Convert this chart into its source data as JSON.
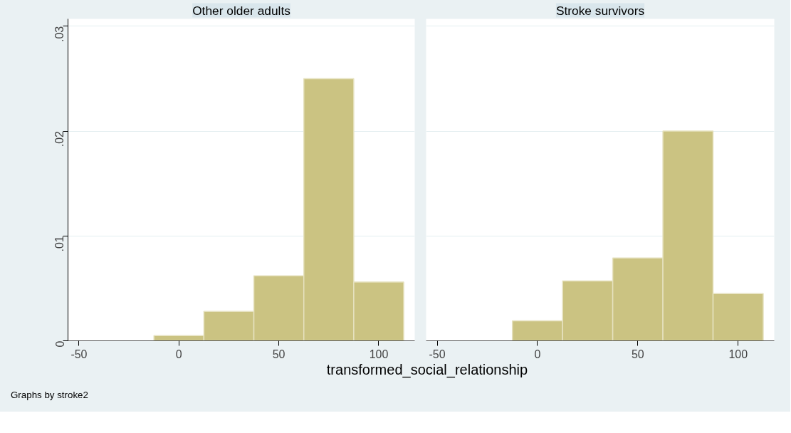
{
  "chart_data": [
    {
      "type": "histogram",
      "title": "Other older adults",
      "xlabel": "transformed_social_relationship",
      "annotations": [
        "Graphs by stroke2"
      ],
      "bins": [
        -12.5,
        12.5,
        37.5,
        62.5,
        87.5,
        112.5
      ],
      "values": [
        0.0005,
        0.0028,
        0.0062,
        0.025,
        0.0056
      ],
      "color": "#cbc382",
      "xlim": [
        -55.5,
        118
      ],
      "xticks": [
        -50,
        0,
        50,
        100
      ],
      "ylim": [
        0,
        0.0307
      ],
      "yticks": [
        {
          "value": 0,
          "label": "0"
        },
        {
          "value": 0.01,
          "label": ".01"
        },
        {
          "value": 0.02,
          "label": ".02"
        },
        {
          "value": 0.03,
          "label": ".03"
        }
      ],
      "grid": "y"
    },
    {
      "type": "histogram",
      "title": "Stroke survivors",
      "bins": [
        -12.5,
        12.5,
        37.5,
        62.5,
        87.5,
        112.5
      ],
      "values": [
        0.0019,
        0.0057,
        0.0079,
        0.02,
        0.0045
      ],
      "color": "#cbc382",
      "xlim": [
        -55.5,
        118
      ],
      "xticks": [
        -50,
        0,
        50,
        100
      ],
      "ylim": [
        0,
        0.0307
      ],
      "yticks": [
        0,
        0.01,
        0.02,
        0.03
      ],
      "grid": "y",
      "tick_labels": "x"
    }
  ]
}
